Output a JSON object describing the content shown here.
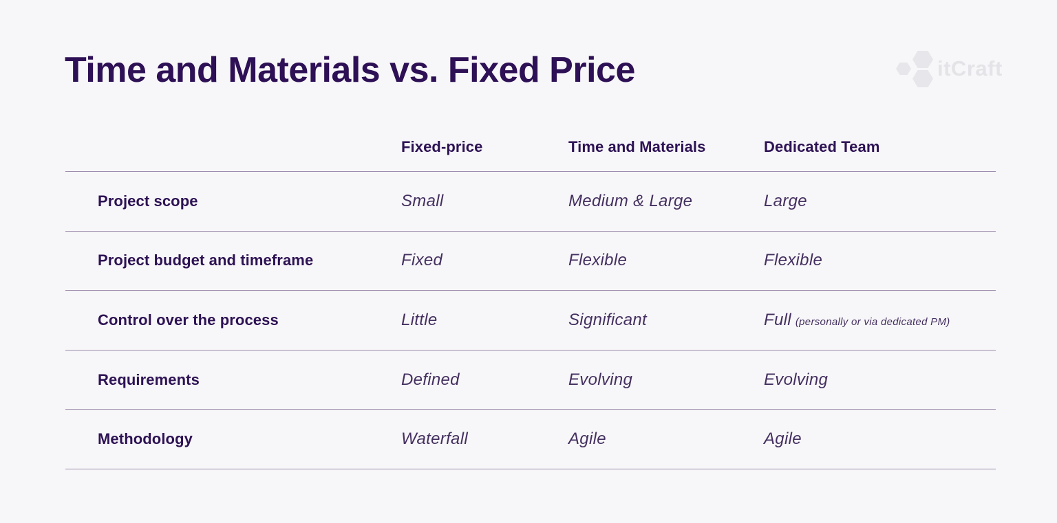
{
  "page": {
    "title": "Time and Materials vs. Fixed Price"
  },
  "logo": {
    "text": "itCraft"
  },
  "table": {
    "columns": [
      "Fixed-price",
      "Time and Materials",
      "Dedicated Team"
    ],
    "rows": [
      {
        "label": "Project scope",
        "cells": [
          "Small",
          "Medium & Large",
          "Large"
        ]
      },
      {
        "label": "Project budget and timeframe",
        "cells": [
          "Fixed",
          "Flexible",
          "Flexible"
        ]
      },
      {
        "label": "Control over the process",
        "cells": [
          "Little",
          "Significant",
          "Full"
        ],
        "note": "(personally or via dedicated PM)"
      },
      {
        "label": "Requirements",
        "cells": [
          "Defined",
          "Evolving",
          "Evolving"
        ]
      },
      {
        "label": "Methodology",
        "cells": [
          "Waterfall",
          "Agile",
          "Agile"
        ]
      }
    ]
  },
  "colors": {
    "background": "#f7f6f8",
    "heading": "#2d1055",
    "row_label": "#2d1254",
    "value_text": "#443060",
    "divider_line": "#9d8cae",
    "logo_gray": "#e7e6ea"
  }
}
